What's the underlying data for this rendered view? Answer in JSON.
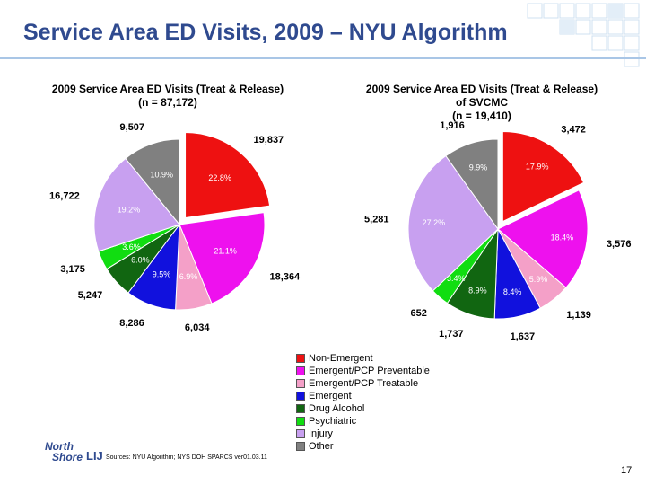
{
  "slide": {
    "title": "Service Area ED Visits, 2009 – NYU Algorithm",
    "sources": "Sources: NYU Algorithm; NYS DOH SPARCS ver01.03.11",
    "page_number": "17",
    "logo": {
      "line1": "North",
      "line2": "Shore",
      "line3": "LIJ"
    }
  },
  "colors": {
    "title": "#2f4a8f",
    "Non-Emergent": "#ee1111",
    "Emergent/PCP Preventable": "#ee11ee",
    "Emergent/PCP Treatable": "#f4a0c8",
    "Emergent": "#1111dd",
    "Drug Alcohol": "#116611",
    "Psychiatric": "#11dd11",
    "Injury": "#c8a0f0",
    "Other": "#808080"
  },
  "legend": [
    "Non-Emergent",
    "Emergent/PCP Preventable",
    "Emergent/PCP Treatable",
    "Emergent",
    "Drug Alcohol",
    "Psychiatric",
    "Injury",
    "Other"
  ],
  "chart_data": [
    {
      "type": "pie",
      "title": "2009 Service Area ED Visits (Treat & Release)",
      "subtitle": "(n = 87,172)",
      "slices": [
        {
          "category": "Non-Emergent",
          "count": "19,837",
          "percent": "22.8%"
        },
        {
          "category": "Emergent/PCP Preventable",
          "count": "18,364",
          "percent": "21.1%"
        },
        {
          "category": "Emergent/PCP Treatable",
          "count": "6,034",
          "percent": "6.9%"
        },
        {
          "category": "Emergent",
          "count": "8,286",
          "percent": "9.5%"
        },
        {
          "category": "Drug Alcohol",
          "count": "5,247",
          "percent": "6.0%"
        },
        {
          "category": "Psychiatric",
          "count": "3,175",
          "percent": "3.6%"
        },
        {
          "category": "Injury",
          "count": "16,722",
          "percent": "19.2%"
        },
        {
          "category": "Other",
          "count": "9,507",
          "percent": "10.9%"
        }
      ]
    },
    {
      "type": "pie",
      "title": "2009 Service Area ED Visits (Treat & Release)",
      "subtitle": "of SVCMC",
      "subtitle2": "(n = 19,410)",
      "slices": [
        {
          "category": "Non-Emergent",
          "count": "3,472",
          "percent": "17.9%"
        },
        {
          "category": "Emergent/PCP Preventable",
          "count": "3,576",
          "percent": "18.4%"
        },
        {
          "category": "Emergent/PCP Treatable",
          "count": "1,139",
          "percent": "5.9%"
        },
        {
          "category": "Emergent",
          "count": "1,637",
          "percent": "8.4%"
        },
        {
          "category": "Drug Alcohol",
          "count": "1,737",
          "percent": "8.9%"
        },
        {
          "category": "Psychiatric",
          "count": "652",
          "percent": "3.4%"
        },
        {
          "category": "Injury",
          "count": "5,281",
          "percent": "27.2%"
        },
        {
          "category": "Other",
          "count": "1,916",
          "percent": "9.9%"
        }
      ]
    }
  ]
}
